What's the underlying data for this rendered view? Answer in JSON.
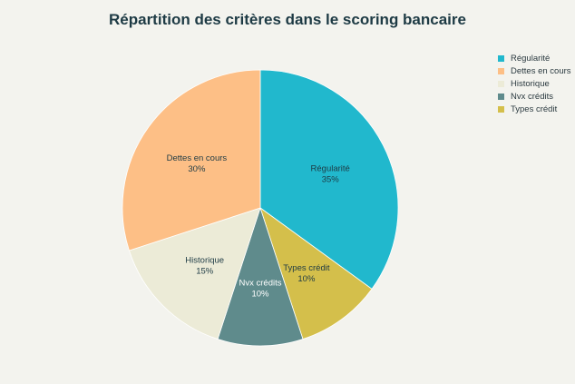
{
  "chart_data": {
    "type": "pie",
    "title": "Répartition des critères dans le scoring bancaire",
    "legend_position": "top-right",
    "slices": [
      {
        "name": "Régularité",
        "value": 35,
        "label": "35%",
        "color": "#21b8cd",
        "text_color": "#1d3a44"
      },
      {
        "name": "Types crédit",
        "value": 10,
        "label": "10%",
        "color": "#d4bf4b",
        "text_color": "#1d3a44"
      },
      {
        "name": "Nvx crédits",
        "value": 10,
        "label": "10%",
        "color": "#5f8b8c",
        "text_color": "#ffffff"
      },
      {
        "name": "Historique",
        "value": 15,
        "label": "15%",
        "color": "#ecebd7",
        "text_color": "#1d3a44"
      },
      {
        "name": "Dettes en cours",
        "value": 30,
        "label": "30%",
        "color": "#fdbf86",
        "text_color": "#1d3a44"
      }
    ],
    "legend_order": [
      "Régularité",
      "Dettes en cours",
      "Historique",
      "Nvx crédits",
      "Types crédit"
    ]
  }
}
